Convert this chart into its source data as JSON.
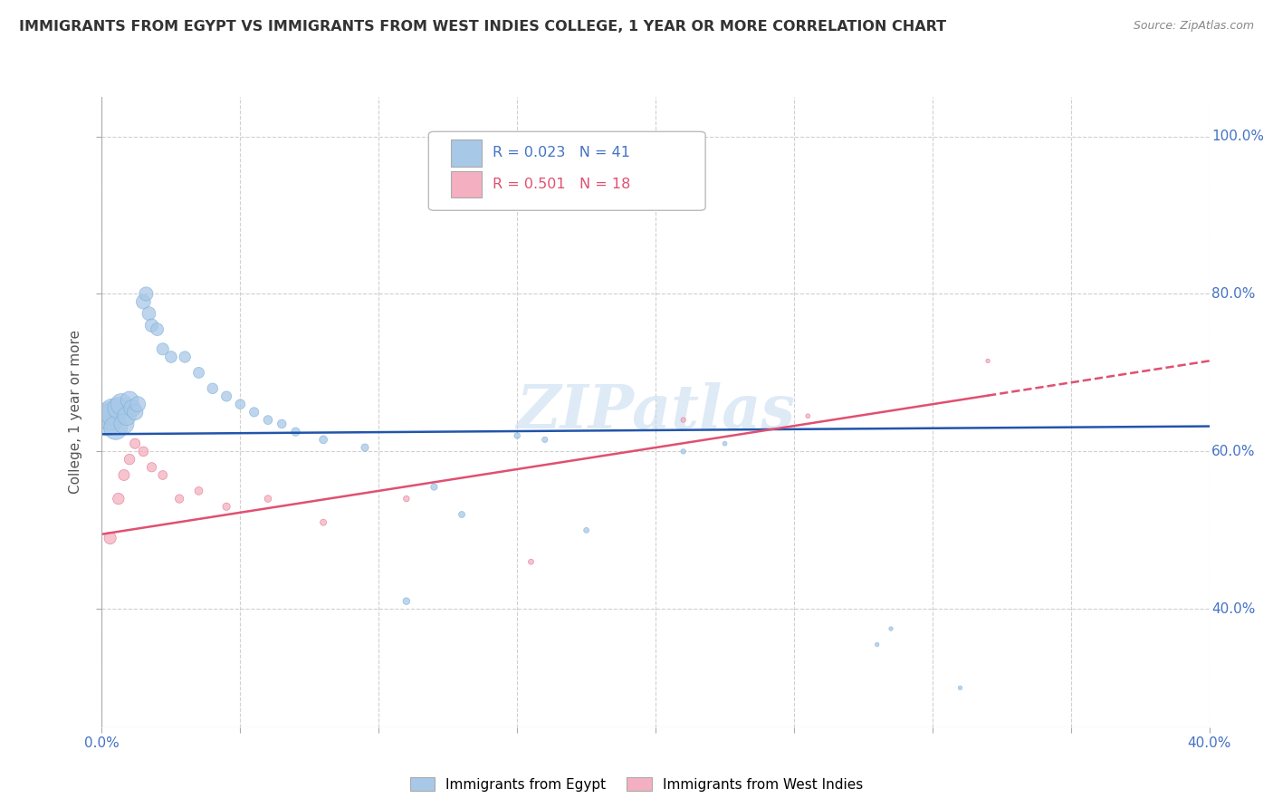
{
  "title": "IMMIGRANTS FROM EGYPT VS IMMIGRANTS FROM WEST INDIES COLLEGE, 1 YEAR OR MORE CORRELATION CHART",
  "source": "Source: ZipAtlas.com",
  "ylabel": "College, 1 year or more",
  "xlim": [
    0.0,
    0.4
  ],
  "ylim": [
    0.25,
    1.05
  ],
  "grid_color": "#d0d0d0",
  "background_color": "#ffffff",
  "egypt_color": "#a8c8e8",
  "egypt_edge_color": "#7aafd4",
  "egypt_line_color": "#2255aa",
  "west_color": "#f4b0c0",
  "west_edge_color": "#e07090",
  "west_line_color": "#e05070",
  "egypt_R": "0.023",
  "egypt_N": "41",
  "west_R": "0.501",
  "west_N": "18",
  "egypt_x": [
    0.002,
    0.003,
    0.004,
    0.005,
    0.006,
    0.007,
    0.008,
    0.009,
    0.01,
    0.011,
    0.012,
    0.013,
    0.015,
    0.016,
    0.017,
    0.018,
    0.02,
    0.022,
    0.025,
    0.03,
    0.035,
    0.04,
    0.045,
    0.05,
    0.055,
    0.06,
    0.065,
    0.07,
    0.08,
    0.095,
    0.11,
    0.12,
    0.13,
    0.15,
    0.16,
    0.175,
    0.21,
    0.225,
    0.28,
    0.31,
    0.285
  ],
  "egypt_y": [
    0.64,
    0.645,
    0.65,
    0.63,
    0.655,
    0.66,
    0.635,
    0.645,
    0.665,
    0.655,
    0.65,
    0.66,
    0.79,
    0.8,
    0.775,
    0.76,
    0.755,
    0.73,
    0.72,
    0.72,
    0.7,
    0.68,
    0.67,
    0.66,
    0.65,
    0.64,
    0.635,
    0.625,
    0.615,
    0.605,
    0.41,
    0.555,
    0.52,
    0.62,
    0.615,
    0.5,
    0.6,
    0.61,
    0.355,
    0.3,
    0.375
  ],
  "egypt_sizes": [
    600,
    500,
    450,
    350,
    300,
    280,
    250,
    220,
    200,
    180,
    160,
    150,
    130,
    120,
    115,
    110,
    100,
    90,
    85,
    80,
    75,
    70,
    65,
    60,
    55,
    50,
    48,
    45,
    40,
    35,
    30,
    28,
    25,
    22,
    20,
    18,
    15,
    12,
    10,
    10,
    10
  ],
  "west_x": [
    0.003,
    0.006,
    0.008,
    0.01,
    0.012,
    0.015,
    0.018,
    0.022,
    0.028,
    0.035,
    0.045,
    0.06,
    0.08,
    0.11,
    0.155,
    0.21,
    0.255,
    0.32
  ],
  "west_y": [
    0.49,
    0.54,
    0.57,
    0.59,
    0.61,
    0.6,
    0.58,
    0.57,
    0.54,
    0.55,
    0.53,
    0.54,
    0.51,
    0.54,
    0.46,
    0.64,
    0.645,
    0.715
  ],
  "west_sizes": [
    90,
    80,
    75,
    70,
    65,
    60,
    55,
    50,
    45,
    40,
    35,
    30,
    25,
    22,
    18,
    15,
    12,
    10
  ],
  "egypt_line_intercept": 0.622,
  "egypt_line_slope": 0.025,
  "west_line_intercept": 0.495,
  "west_line_slope": 0.55
}
